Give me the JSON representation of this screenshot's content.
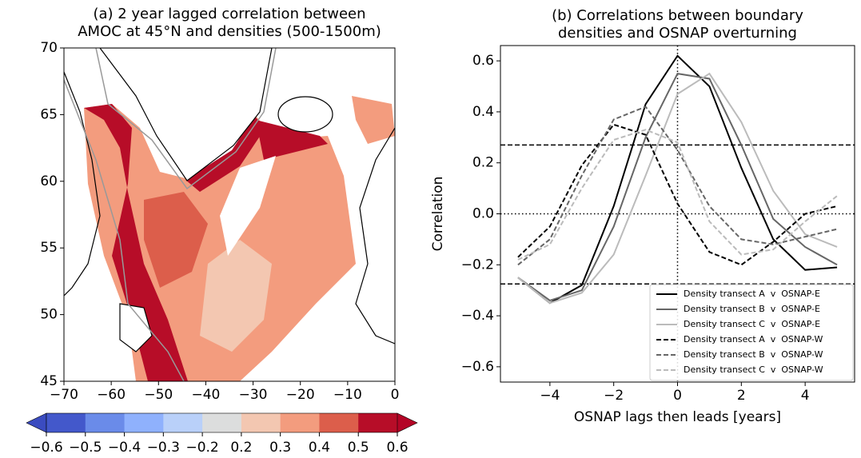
{
  "chart_data": [
    {
      "type": "map",
      "title": [
        "(a) 2 year lagged correlation between",
        "AMOC at 45°N and densities (500-1500m)"
      ],
      "xlim": [
        -70,
        0
      ],
      "xticks": [
        {
          "value": -70,
          "label": "−70"
        },
        {
          "value": -60,
          "label": "−60"
        },
        {
          "value": -50,
          "label": "−50"
        },
        {
          "value": -40,
          "label": "−40"
        },
        {
          "value": -30,
          "label": "−30"
        },
        {
          "value": -20,
          "label": "−20"
        },
        {
          "value": -10,
          "label": "−10"
        },
        0
      ],
      "ylim": [
        45,
        70
      ],
      "yticks": [
        45,
        50,
        55,
        60,
        65,
        70
      ],
      "colorbar": {
        "ticks": [
          {
            "value": -0.6,
            "label": "−0.6"
          },
          {
            "value": -0.5,
            "label": "−0.5"
          },
          {
            "value": -0.4,
            "label": "−0.4"
          },
          {
            "value": -0.3,
            "label": "−0.3"
          },
          {
            "value": -0.2,
            "label": "−0.2"
          },
          0.2,
          0.3,
          0.4,
          0.5,
          0.6
        ],
        "colors": [
          "#4358cb",
          "#6a8be9",
          "#8fb1fd",
          "#b9d0f9",
          "#dcdddd",
          "#f3c7b1",
          "#f39c7e",
          "#dc5e4b",
          "#b70d28"
        ],
        "under_color": "#3b4cc0",
        "over_color": "#b40426"
      }
    },
    {
      "type": "line",
      "title": [
        "(b) Correlations between boundary",
        "densities and OSNAP overturning"
      ],
      "xlabel": "OSNAP lags then leads [years]",
      "ylabel": "Correlation",
      "x": [
        -5,
        -4,
        -3,
        -2,
        -1,
        0,
        1,
        2,
        3,
        4,
        5
      ],
      "xlim": [
        -5.55,
        5.55
      ],
      "xticks": [
        {
          "value": -4,
          "label": "−4"
        },
        {
          "value": -2,
          "label": "−2"
        },
        0,
        2,
        4
      ],
      "ylim": [
        -0.66,
        0.66
      ],
      "yticks": [
        {
          "value": -0.6,
          "label": "−0.6"
        },
        {
          "value": -0.4,
          "label": "−0.4"
        },
        {
          "value": -0.2,
          "label": "−0.2"
        },
        {
          "value": 0,
          "label": "0.0"
        },
        0.2,
        0.4,
        0.6
      ],
      "hlines": [
        0.27,
        -0.275
      ],
      "zero_lines": true,
      "legend": "lower right",
      "series": [
        {
          "name": "Density transect A  v  OSNAP-E",
          "color": "#000000",
          "linestyle": "solid",
          "values": [
            -0.25,
            -0.35,
            -0.28,
            0.03,
            0.43,
            0.62,
            0.5,
            0.18,
            -0.1,
            -0.22,
            -0.21
          ]
        },
        {
          "name": "Density transect B  v  OSNAP-E",
          "color": "#666666",
          "linestyle": "solid",
          "values": [
            -0.25,
            -0.34,
            -0.3,
            -0.05,
            0.3,
            0.55,
            0.53,
            0.27,
            -0.02,
            -0.13,
            -0.2
          ]
        },
        {
          "name": "Density transect C  v  OSNAP-E",
          "color": "#bbbbbb",
          "linestyle": "solid",
          "values": [
            -0.25,
            -0.35,
            -0.31,
            -0.16,
            0.15,
            0.47,
            0.55,
            0.36,
            0.09,
            -0.08,
            -0.13
          ]
        },
        {
          "name": "Density transect A  v  OSNAP-W",
          "color": "#000000",
          "linestyle": "dashed",
          "values": [
            -0.17,
            -0.05,
            0.19,
            0.35,
            0.31,
            0.04,
            -0.15,
            -0.2,
            -0.11,
            0.0,
            0.03
          ]
        },
        {
          "name": "Density transect B  v  OSNAP-W",
          "color": "#666666",
          "linestyle": "dashed",
          "values": [
            -0.2,
            -0.1,
            0.15,
            0.37,
            0.42,
            0.25,
            0.03,
            -0.1,
            -0.12,
            -0.09,
            -0.06
          ]
        },
        {
          "name": "Density transect C  v  OSNAP-W",
          "color": "#bbbbbb",
          "linestyle": "dashed",
          "values": [
            -0.18,
            -0.12,
            0.1,
            0.29,
            0.33,
            0.28,
            -0.03,
            -0.16,
            -0.14,
            -0.03,
            0.07
          ]
        }
      ]
    }
  ]
}
